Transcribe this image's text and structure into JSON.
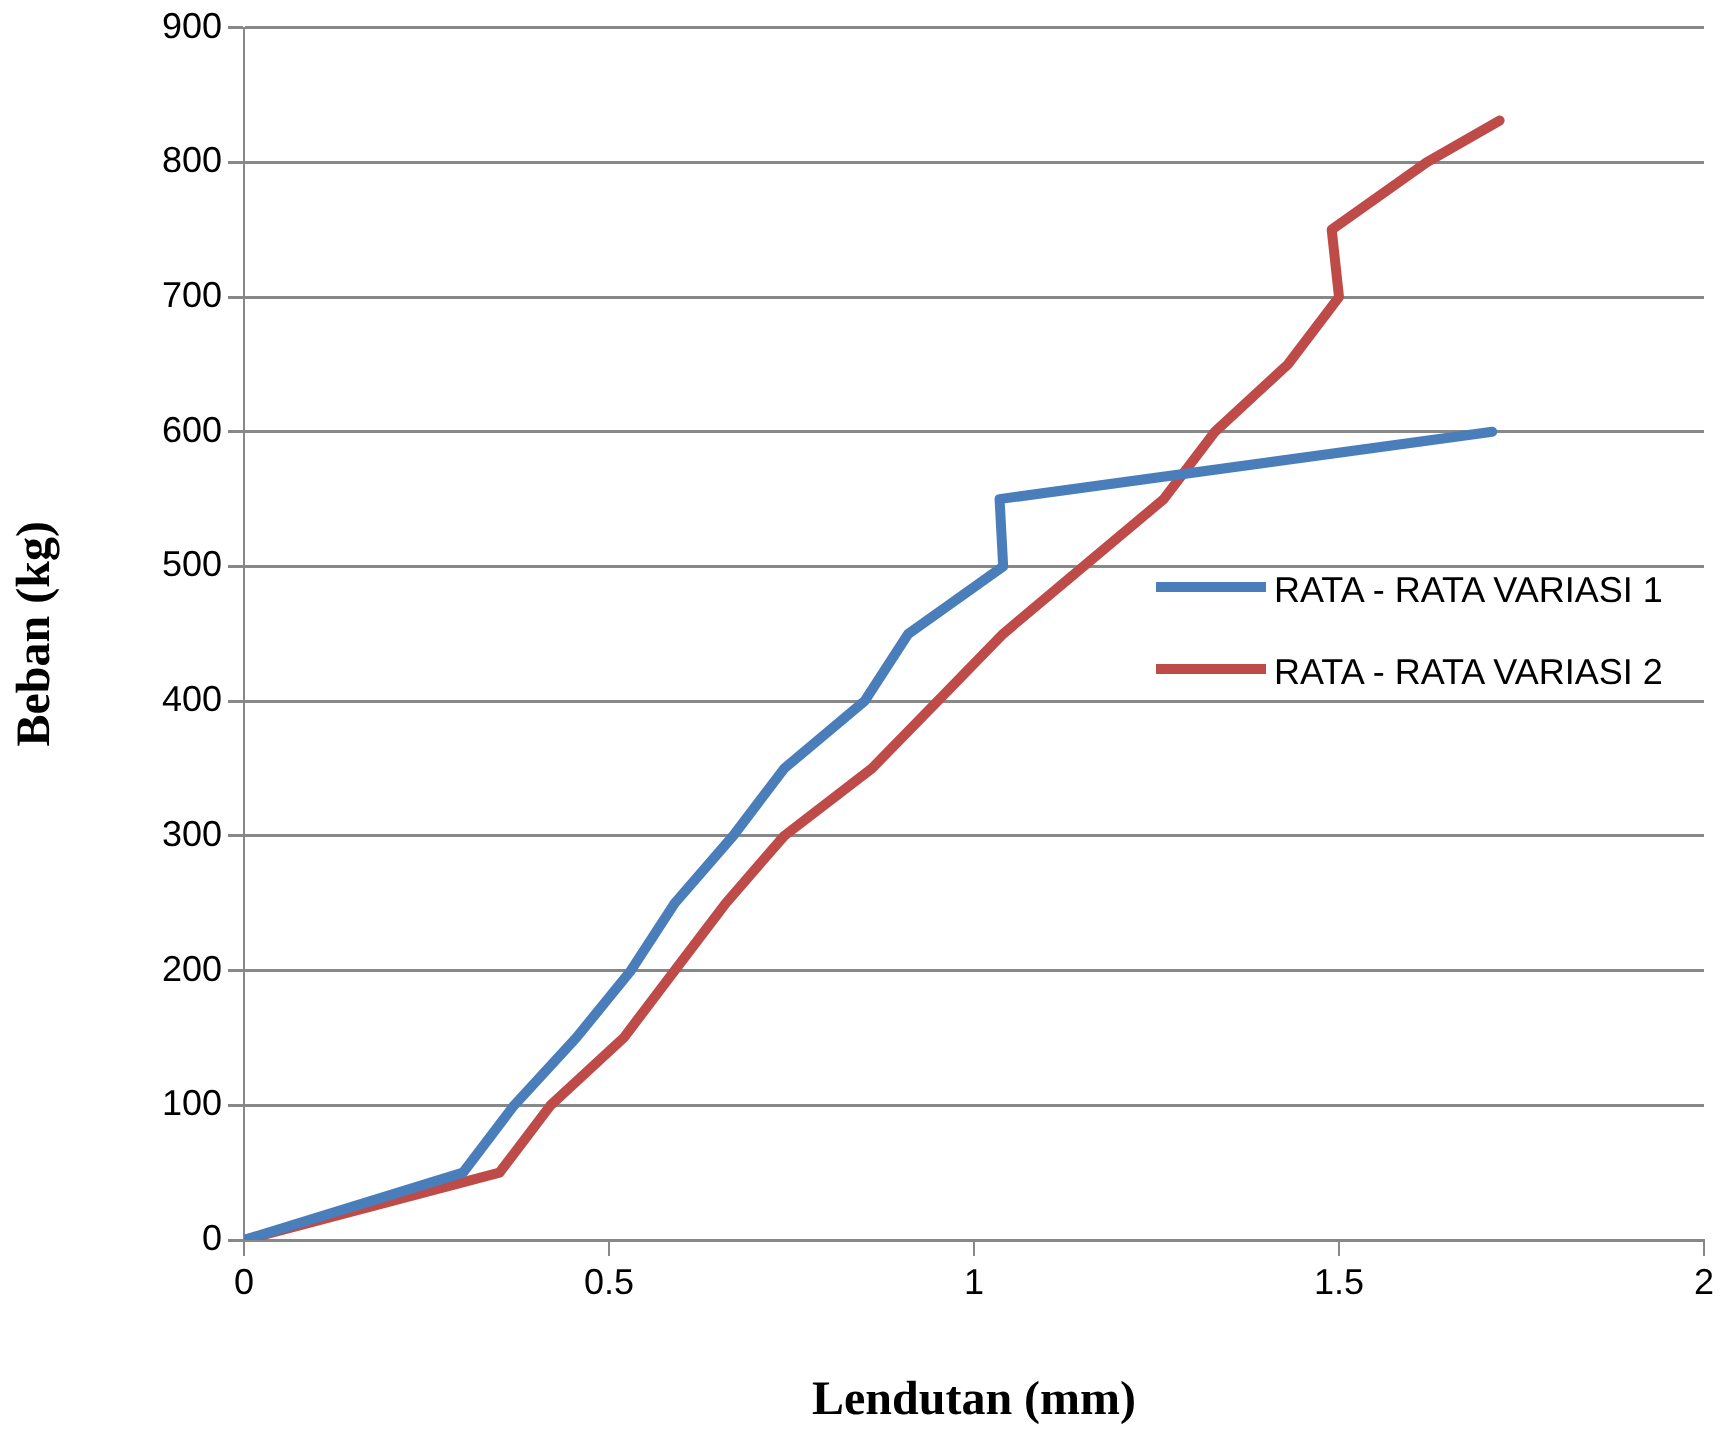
{
  "chart_data": {
    "type": "line",
    "xlabel": "Lendutan (mm)",
    "ylabel": "Beban (kg)",
    "xlim": [
      0,
      2
    ],
    "xticks": [
      0,
      0.5,
      1,
      1.5,
      2
    ],
    "ylim": [
      0,
      900
    ],
    "yticks": [
      0,
      100,
      200,
      300,
      400,
      500,
      600,
      700,
      800,
      900
    ],
    "grid": "y",
    "legend": "right",
    "marker": "none",
    "line_style": "solid",
    "series": [
      {
        "name": "RATA - RATA VARIASI 1",
        "color": "#4a7ebb",
        "x": [
          0,
          0.3,
          0.37,
          0.455,
          0.53,
          0.59,
          0.67,
          0.74,
          0.85,
          0.91,
          1.04,
          1.035,
          1.71
        ],
        "values": [
          0,
          50,
          100,
          150,
          200,
          250,
          300,
          350,
          400,
          450,
          500,
          550,
          600
        ]
      },
      {
        "name": "RATA - RATA VARIASI 2",
        "color": "#be4b48",
        "x": [
          0,
          0.35,
          0.42,
          0.52,
          0.59,
          0.66,
          0.74,
          0.86,
          0.95,
          1.04,
          1.15,
          1.26,
          1.33,
          1.43,
          1.5,
          1.49,
          1.62,
          1.72
        ],
        "values": [
          0,
          50,
          100,
          150,
          200,
          250,
          300,
          350,
          400,
          450,
          500,
          550,
          600,
          650,
          700,
          750,
          800,
          831
        ]
      }
    ]
  }
}
